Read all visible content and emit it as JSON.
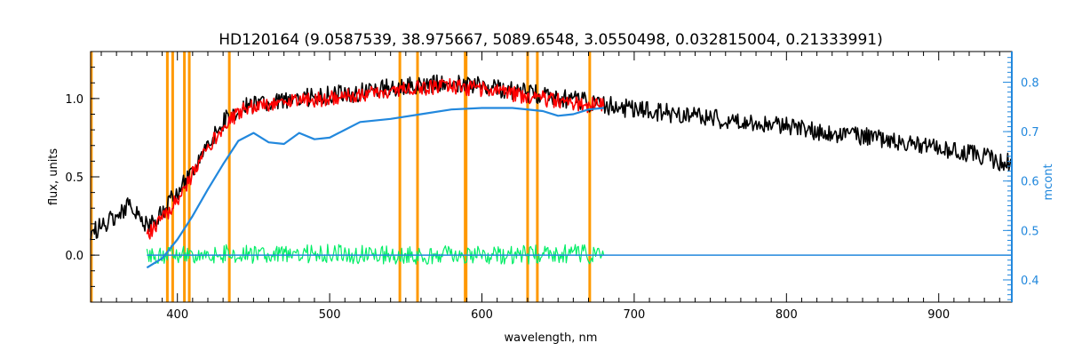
{
  "chart_data": {
    "type": "line",
    "title": "HD120164   (9.0587539, 38.975667, 5089.6548, 3.0550498, 0.032815004, 0.21333991)",
    "xlabel": "wavelength, nm",
    "ylabel_left": "flux, units",
    "ylabel_right": "mcont",
    "xlim": [
      343,
      948
    ],
    "ylim_left": [
      -0.3,
      1.3
    ],
    "ylim_right": [
      0.355,
      0.862
    ],
    "xticks": [
      400,
      500,
      600,
      700,
      800,
      900
    ],
    "yticks_left": [
      0.0,
      0.5,
      1.0
    ],
    "yticks_right": [
      0.4,
      0.5,
      0.6,
      0.7,
      0.8
    ],
    "colors": {
      "observed": "#000000",
      "model": "#ff0000",
      "residual": "#00ee66",
      "continuum": "#2288dd",
      "lines": "#ff9900",
      "right_axis": "#2288dd"
    },
    "series": [
      {
        "key": "observed",
        "x": [
          343,
          350,
          360,
          370,
          380,
          390,
          400,
          410,
          420,
          430,
          440,
          450,
          460,
          470,
          480,
          490,
          500,
          520,
          540,
          560,
          575,
          590,
          600,
          620,
          640,
          660,
          680,
          700,
          720,
          740,
          760,
          780,
          800,
          820,
          840,
          860,
          880,
          900,
          920,
          940,
          948
        ],
        "y": [
          0.15,
          0.18,
          0.25,
          0.33,
          0.18,
          0.28,
          0.4,
          0.55,
          0.72,
          0.85,
          0.93,
          0.96,
          0.97,
          0.98,
          1.0,
          1.01,
          1.02,
          1.04,
          1.07,
          1.09,
          1.1,
          1.09,
          1.08,
          1.05,
          1.02,
          0.99,
          0.96,
          0.93,
          0.91,
          0.89,
          0.86,
          0.84,
          0.82,
          0.79,
          0.77,
          0.75,
          0.72,
          0.68,
          0.65,
          0.6,
          0.59
        ]
      },
      {
        "key": "model",
        "x": [
          380,
          390,
          400,
          410,
          420,
          430,
          440,
          450,
          460,
          480,
          500,
          520,
          540,
          560,
          575,
          590,
          600,
          620,
          640,
          660,
          680
        ],
        "y": [
          0.12,
          0.22,
          0.36,
          0.52,
          0.68,
          0.82,
          0.91,
          0.95,
          0.96,
          0.99,
          1.0,
          1.02,
          1.05,
          1.07,
          1.08,
          1.07,
          1.06,
          1.03,
          1.0,
          0.97,
          0.95
        ]
      },
      {
        "key": "residual",
        "x": [
          380,
          420,
          460,
          500,
          540,
          580,
          620,
          660,
          680
        ],
        "y": [
          0.0,
          0.01,
          0.0,
          0.01,
          0.0,
          0.0,
          0.0,
          0.01,
          0.0
        ]
      },
      {
        "key": "continuum",
        "x": [
          380,
          390,
          400,
          410,
          420,
          430,
          440,
          450,
          460,
          470,
          480,
          490,
          500,
          510,
          520,
          540,
          560,
          580,
          600,
          620,
          640,
          650,
          660,
          670,
          680
        ],
        "y": [
          -0.08,
          -0.02,
          0.1,
          0.25,
          0.42,
          0.58,
          0.73,
          0.78,
          0.72,
          0.71,
          0.78,
          0.74,
          0.75,
          0.8,
          0.85,
          0.87,
          0.9,
          0.93,
          0.94,
          0.94,
          0.92,
          0.89,
          0.9,
          0.93,
          0.94
        ]
      },
      {
        "key": "baseline",
        "x": [
          380,
          948
        ],
        "y": [
          0.0,
          0.0
        ]
      }
    ],
    "vertical_lines_nm": [
      343.5,
      393.4,
      396.9,
      404.6,
      407.8,
      434.1,
      546.1,
      557.7,
      589.0,
      589.6,
      630.0,
      636.4,
      670.8
    ]
  }
}
